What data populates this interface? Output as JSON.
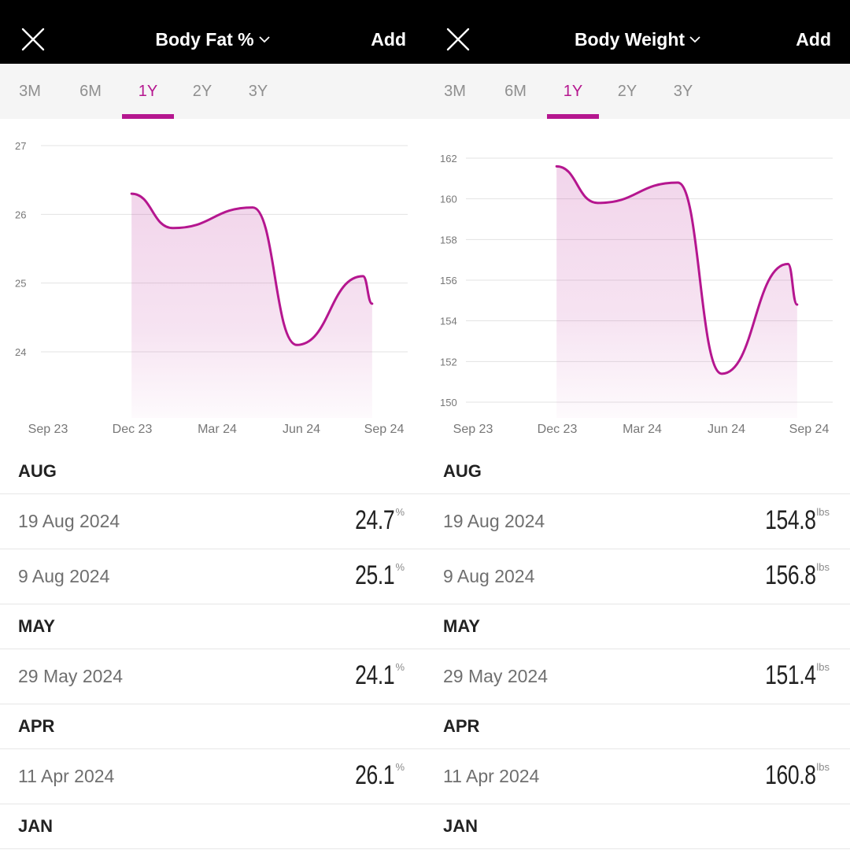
{
  "accent": "#b5168f",
  "screens": [
    {
      "title": "Body Fat %",
      "add_label": "Add",
      "tabs": [
        "3M",
        "6M",
        "1Y",
        "2Y",
        "3Y"
      ],
      "active_tab": "1Y",
      "chart_data": {
        "type": "area",
        "y_ticks": [
          "27",
          "26",
          "25",
          "24"
        ],
        "ylim": [
          23.1,
          27
        ],
        "x_ticks": [
          "Sep 23",
          "Dec 23",
          "Mar 24",
          "Jun 24",
          "Sep 24"
        ],
        "grid": true,
        "series": [
          {
            "x": [
              "2023-12-01",
              "2024-01-15",
              "2024-04-11",
              "2024-05-29",
              "2024-08-09",
              "2024-08-19"
            ],
            "values": [
              26.3,
              25.8,
              26.1,
              24.1,
              25.1,
              24.7
            ]
          }
        ]
      },
      "months": [
        {
          "label": "AUG",
          "entries": [
            {
              "date": "19 Aug 2024",
              "value": "24.7",
              "unit": "%"
            },
            {
              "date": "9 Aug 2024",
              "value": "25.1",
              "unit": "%"
            }
          ]
        },
        {
          "label": "MAY",
          "entries": [
            {
              "date": "29 May 2024",
              "value": "24.1",
              "unit": "%"
            }
          ]
        },
        {
          "label": "APR",
          "entries": [
            {
              "date": "11 Apr 2024",
              "value": "26.1",
              "unit": "%"
            }
          ]
        },
        {
          "label": "JAN",
          "entries": []
        }
      ]
    },
    {
      "title": "Body Weight",
      "add_label": "Add",
      "tabs": [
        "3M",
        "6M",
        "1Y",
        "2Y",
        "3Y"
      ],
      "active_tab": "1Y",
      "chart_data": {
        "type": "area",
        "y_ticks": [
          "162",
          "160",
          "158",
          "156",
          "154",
          "152",
          "150"
        ],
        "ylim": [
          149.4,
          162.6
        ],
        "x_ticks": [
          "Sep 23",
          "Dec 23",
          "Mar 24",
          "Jun 24",
          "Sep 24"
        ],
        "grid": true,
        "series": [
          {
            "x": [
              "2023-12-01",
              "2024-01-15",
              "2024-04-11",
              "2024-05-29",
              "2024-08-09",
              "2024-08-19"
            ],
            "values": [
              161.6,
              159.8,
              160.8,
              151.4,
              156.8,
              154.8
            ]
          }
        ]
      },
      "months": [
        {
          "label": "AUG",
          "entries": [
            {
              "date": "19 Aug 2024",
              "value": "154.8",
              "unit": "lbs"
            },
            {
              "date": "9 Aug 2024",
              "value": "156.8",
              "unit": "lbs"
            }
          ]
        },
        {
          "label": "MAY",
          "entries": [
            {
              "date": "29 May 2024",
              "value": "151.4",
              "unit": "lbs"
            }
          ]
        },
        {
          "label": "APR",
          "entries": [
            {
              "date": "11 Apr 2024",
              "value": "160.8",
              "unit": "lbs"
            }
          ]
        },
        {
          "label": "JAN",
          "entries": []
        }
      ]
    }
  ]
}
